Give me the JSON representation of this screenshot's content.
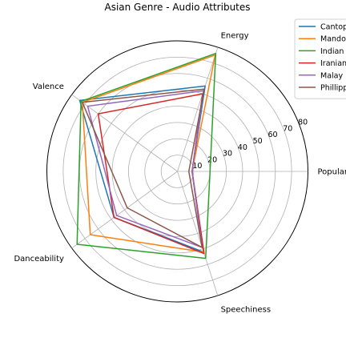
{
  "chart_data": {
    "type": "radar",
    "title": "Asian Genre - Audio Attributes",
    "axes": [
      "Popularity",
      "Energy",
      "Valence",
      "Danceability",
      "Speechiness"
    ],
    "r_ticks": [
      10,
      20,
      30,
      40,
      50,
      60,
      70,
      80
    ],
    "r_range": [
      0,
      80
    ],
    "grid": true,
    "legend_position": "top-right",
    "series": [
      {
        "name": "Cantopop",
        "color": "#1f77b4",
        "values": [
          9,
          55,
          74,
          48,
          52
        ]
      },
      {
        "name": "Mandopop",
        "color": "#ff7f0e",
        "values": [
          9,
          75,
          72,
          66,
          52
        ]
      },
      {
        "name": "Indian",
        "color": "#2ca02c",
        "values": [
          20,
          76,
          73,
          76,
          56
        ]
      },
      {
        "name": "Iranian",
        "color": "#d62728",
        "values": [
          9,
          50,
          60,
          48,
          53
        ]
      },
      {
        "name": "Malay",
        "color": "#9467bd",
        "values": [
          9,
          52,
          68,
          46,
          49
        ]
      },
      {
        "name": "Phillippine",
        "color": "#8c564b",
        "values": [
          7,
          53,
          72,
          38,
          49
        ]
      }
    ]
  }
}
